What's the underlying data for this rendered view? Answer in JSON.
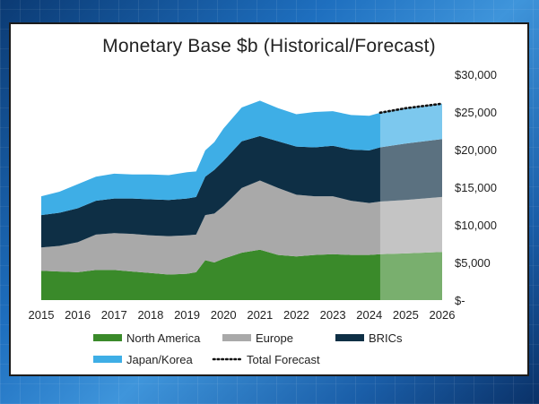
{
  "chart_data": {
    "type": "area",
    "stacked": true,
    "title": "Monetary Base $b (Historical/Forecast)",
    "xlabel": "",
    "ylabel": "",
    "xlim": [
      2015,
      2026
    ],
    "ylim": [
      0,
      30000
    ],
    "forecast_start": 2024.3,
    "x_ticks": [
      "2015",
      "2016",
      "2017",
      "2018",
      "2019",
      "2020",
      "2021",
      "2022",
      "2023",
      "2024",
      "2025",
      "2026"
    ],
    "y_ticks": [
      "$-",
      "$5,000",
      "$10,000",
      "$15,000",
      "$20,000",
      "$25,000",
      "$30,000"
    ],
    "x": [
      2015.0,
      2015.5,
      2016.0,
      2016.5,
      2017.0,
      2017.5,
      2018.0,
      2018.5,
      2019.0,
      2019.25,
      2019.5,
      2019.75,
      2020.0,
      2020.5,
      2021.0,
      2021.5,
      2022.0,
      2022.5,
      2023.0,
      2023.5,
      2024.0,
      2024.3,
      2025.0,
      2026.0
    ],
    "series": [
      {
        "name": "North America",
        "color": "#3a8a2a",
        "values": [
          3900,
          3800,
          3700,
          4000,
          4000,
          3800,
          3600,
          3400,
          3500,
          3700,
          5300,
          5000,
          5500,
          6300,
          6700,
          6000,
          5800,
          6000,
          6100,
          6000,
          6000,
          6100,
          6200,
          6400
        ]
      },
      {
        "name": "Europe",
        "color": "#a9a9a9",
        "values": [
          3100,
          3400,
          4000,
          4700,
          4900,
          5000,
          5000,
          5100,
          5100,
          5000,
          6000,
          6500,
          7000,
          8600,
          9200,
          8900,
          8200,
          7800,
          7700,
          7200,
          6900,
          7000,
          7100,
          7300
        ]
      },
      {
        "name": "BRICs",
        "color": "#0e2f45",
        "values": [
          4300,
          4400,
          4500,
          4500,
          4600,
          4700,
          4800,
          4800,
          4900,
          5000,
          5100,
          5800,
          6000,
          6200,
          5900,
          6200,
          6400,
          6500,
          6700,
          6800,
          7000,
          7200,
          7500,
          7700
        ]
      },
      {
        "name": "Japan/Korea",
        "color": "#3eaee6",
        "values": [
          2500,
          2800,
          3200,
          3200,
          3300,
          3200,
          3300,
          3300,
          3500,
          3400,
          3500,
          3700,
          4300,
          4500,
          4700,
          4400,
          4300,
          4700,
          4600,
          4600,
          4600,
          4600,
          4700,
          4700
        ]
      }
    ],
    "total_forecast": {
      "name": "Total Forecast",
      "x": [
        2024.3,
        2025.0,
        2026.0
      ],
      "values": [
        24900,
        25500,
        26100
      ]
    },
    "legend_position": "bottom"
  }
}
